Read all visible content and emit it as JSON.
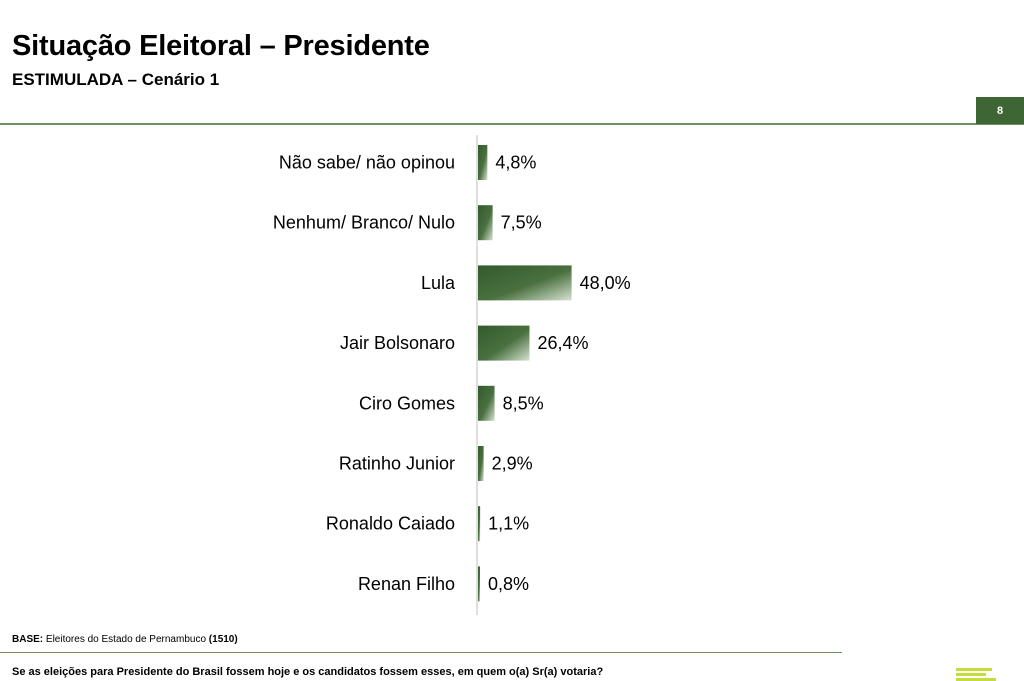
{
  "header": {
    "title": "Situação Eleitoral – Presidente",
    "subtitle": "ESTIMULADA – Cenário 1",
    "page_number": "8"
  },
  "footer": {
    "base_label": "BASE:",
    "base_text": "Eleitores do Estado de Pernambuco",
    "base_count": "(1510)",
    "question": "Se as eleições para Presidente do Brasil fossem hoje e os candidatos fossem esses, em quem o(a) Sr(a) votaria?",
    "logo_icon": "brand-stripes-icon"
  },
  "colors": {
    "bar_dark": "#335a2b",
    "bar_light": "#d6e2d0",
    "accent": "#3e6534",
    "rule": "#6e8f5e",
    "logo": "#c5dc3c"
  },
  "chart_data": {
    "type": "bar",
    "orientation": "horizontal",
    "categories": [
      "Não sabe/ não opinou",
      "Nenhum/ Branco/ Nulo",
      "Lula",
      "Jair Bolsonaro",
      "Ciro Gomes",
      "Ratinho Junior",
      "Ronaldo Caiado",
      "Renan Filho"
    ],
    "values": [
      4.8,
      7.5,
      48.0,
      26.4,
      8.5,
      2.9,
      1.1,
      0.8
    ],
    "value_labels": [
      "4,8%",
      "7,5%",
      "48,0%",
      "26,4%",
      "8,5%",
      "2,9%",
      "1,1%",
      "0,8%"
    ],
    "title": "",
    "xlabel": "",
    "ylabel": "",
    "xlim": [
      0,
      100
    ],
    "grid": false,
    "legend": "none"
  }
}
